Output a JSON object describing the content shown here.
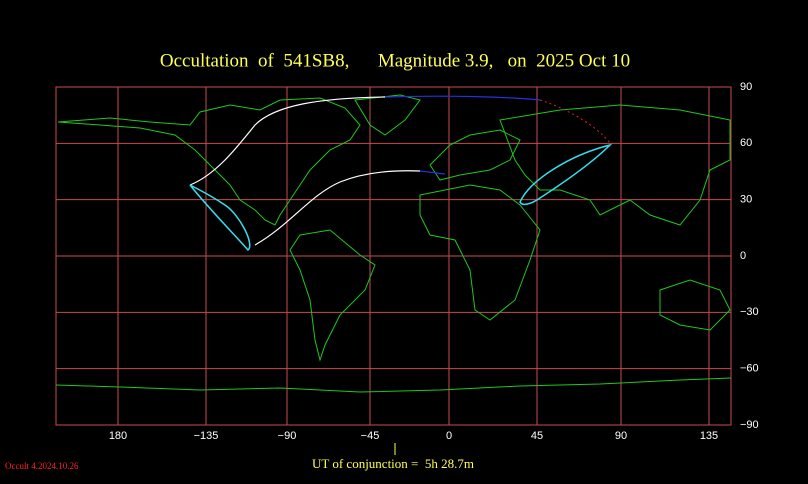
{
  "title": "Occultation  of  541SB8,      Magnitude 3.9,   on  2025 Oct 10",
  "longitude_labels": [
    "180",
    "−135",
    "−90",
    "−45",
    "0",
    "45",
    "90",
    "135"
  ],
  "latitude_labels": [
    "90",
    "60",
    "30",
    "0",
    "−30",
    "−60",
    "−90"
  ],
  "conjunction": "UT of conjunction =  5h 28.7m",
  "version": "Occult 4.2024.10.26"
}
